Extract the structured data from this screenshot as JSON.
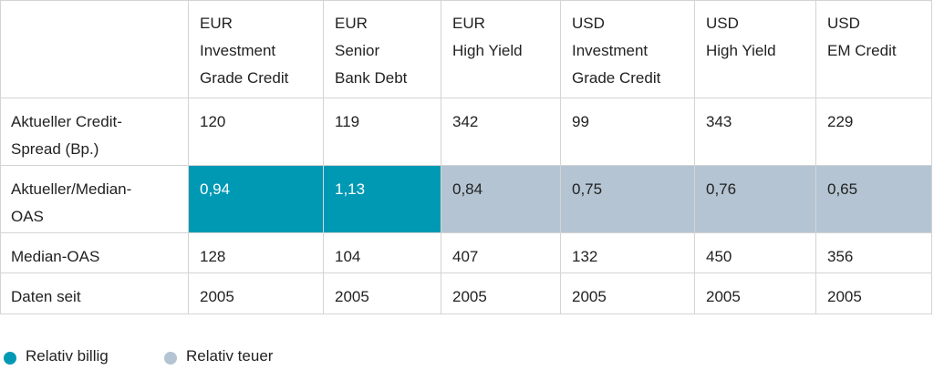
{
  "table": {
    "header": [
      [],
      [
        "EUR",
        "Investment",
        "Grade Credit"
      ],
      [
        "EUR",
        "Senior",
        "Bank Debt"
      ],
      [
        "EUR",
        "High Yield"
      ],
      [
        "USD",
        "Investment",
        "Grade Credit"
      ],
      [
        "USD",
        "High Yield"
      ],
      [
        "USD",
        "EM Credit"
      ]
    ],
    "rows": [
      {
        "label": [
          "Aktueller Credit-",
          "Spread (Bp.)"
        ],
        "cells": [
          "120",
          "119",
          "342",
          "99",
          "343",
          "229"
        ]
      },
      {
        "label": [
          "Aktueller/Median-",
          "OAS"
        ],
        "cells": [
          "0,94",
          "1,13",
          "0,84",
          "0,75",
          "0,76",
          "0,65"
        ],
        "cell_colors": [
          "#0099b4",
          "#0099b4",
          "#b4c4d2",
          "#b4c4d2",
          "#b4c4d2",
          "#b4c4d2"
        ],
        "text_colors": [
          "#ffffff",
          "#ffffff",
          "#222222",
          "#222222",
          "#222222",
          "#222222"
        ]
      },
      {
        "label": [
          "Median-OAS"
        ],
        "cells": [
          "128",
          "104",
          "407",
          "132",
          "450",
          "356"
        ]
      },
      {
        "label": [
          "Daten seit"
        ],
        "cells": [
          "2005",
          "2005",
          "2005",
          "2005",
          "2005",
          "2005"
        ]
      }
    ]
  },
  "legend": [
    {
      "label": "Relativ billig",
      "color": "#0099b4"
    },
    {
      "label": "Relativ teuer",
      "color": "#b4c4d2"
    }
  ]
}
